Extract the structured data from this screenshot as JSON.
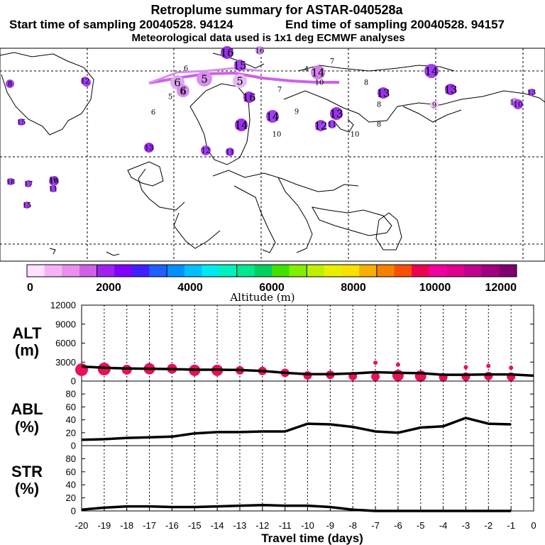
{
  "header": {
    "title": "Retroplume summary for ASTAR-040528a",
    "start": "Start time of sampling 20040528. 94124",
    "end": "End time of sampling 20040528. 94157",
    "met": "Meteorological data used is 1x1 deg ECMWF analyses"
  },
  "colorbar": {
    "label": "Altitude (m)",
    "ticks": [
      "0",
      "2000",
      "4000",
      "6000",
      "8000",
      "10000",
      "12000"
    ],
    "colors": [
      "#ffe0ff",
      "#f4b4f4",
      "#e890ec",
      "#d060e8",
      "#a020f0",
      "#8000ff",
      "#4020ff",
      "#2060ff",
      "#0090ff",
      "#00c0ff",
      "#00e8f0",
      "#00f0c0",
      "#00e890",
      "#00d060",
      "#40e000",
      "#80f000",
      "#c0f000",
      "#e8f000",
      "#f8e000",
      "#f8b000",
      "#f88000",
      "#f85000",
      "#f00050",
      "#f000a0",
      "#e00090",
      "#c00090",
      "#a00080",
      "#800070"
    ]
  },
  "map": {
    "markers": [
      {
        "label": "16",
        "c": "#9a30e8",
        "r": 9
      },
      {
        "label": "15",
        "c": "#a040f0",
        "r": 8
      },
      {
        "label": "16",
        "c": "#d090ec",
        "r": 6
      },
      {
        "label": "7",
        "c": "#e0b0f4",
        "r": 0
      },
      {
        "label": "14",
        "c": "#d080e8",
        "r": 10
      },
      {
        "label": "4",
        "c": "#e8b8f4",
        "r": 0
      },
      {
        "label": "6",
        "c": "#f4c8f8",
        "r": 0
      },
      {
        "label": "6",
        "c": "#e0a8f0",
        "r": 10
      },
      {
        "label": "5",
        "c": "#d890ec",
        "r": 11
      },
      {
        "label": "5",
        "c": "#e8b8f4",
        "r": 10
      },
      {
        "label": "7",
        "c": "#f8d8fc",
        "r": 0
      },
      {
        "label": "6",
        "c": "#d88af0",
        "r": 9
      },
      {
        "label": "10",
        "c": "#f0c0f8",
        "r": 0
      },
      {
        "label": "8",
        "c": "#ffffff",
        "r": 0
      },
      {
        "label": "16",
        "c": "#9a30e8",
        "r": 8
      },
      {
        "label": "8",
        "c": "#ffffff",
        "r": 0
      },
      {
        "label": "9",
        "c": "#f0c8f8",
        "r": 6
      },
      {
        "label": "13",
        "c": "#9a30e8",
        "r": 8
      },
      {
        "label": "14",
        "c": "#a040f0",
        "r": 10
      },
      {
        "label": "13",
        "c": "#9a30e8",
        "r": 8
      },
      {
        "label": "10",
        "c": "#d090ec",
        "r": 6
      },
      {
        "label": "14",
        "c": "#9a30e8",
        "r": 9
      },
      {
        "label": "10",
        "c": "#e8b8f4",
        "r": 0
      },
      {
        "label": "12",
        "c": "#a040f0",
        "r": 8
      },
      {
        "label": "11",
        "c": "#a040f0",
        "r": 6
      },
      {
        "label": "13",
        "c": "#9a30e8",
        "r": 9
      },
      {
        "label": "10",
        "c": "#ffffff",
        "r": 0
      },
      {
        "label": "8",
        "c": "#ffffff",
        "r": 0
      },
      {
        "label": "9",
        "c": "#d090ec",
        "r": 0
      },
      {
        "label": "14",
        "c": "#a040f0",
        "r": 9
      },
      {
        "label": "13",
        "c": "#9a30e8",
        "r": 7
      },
      {
        "label": "12",
        "c": "#a040f0",
        "r": 7
      },
      {
        "label": "11",
        "c": "#a040f0",
        "r": 6
      },
      {
        "label": "6",
        "c": "#ffffff",
        "r": 0
      },
      {
        "label": "5",
        "c": "#ffffff",
        "r": 0
      },
      {
        "label": "6",
        "c": "#ffffff",
        "r": 0
      },
      {
        "label": "15",
        "c": "#a040f0",
        "r": 5
      },
      {
        "label": "16",
        "c": "#a040f0",
        "r": 7
      },
      {
        "label": "8",
        "c": "#a040f0",
        "r": 6
      },
      {
        "label": "9",
        "c": "#a040f0",
        "r": 6
      },
      {
        "label": "18",
        "c": "#a040f0",
        "r": 5
      },
      {
        "label": "17",
        "c": "#a040f0",
        "r": 5
      },
      {
        "label": "16",
        "c": "#ffffff",
        "r": 0
      },
      {
        "label": "11",
        "c": "#a040f0",
        "r": 5
      },
      {
        "label": "15",
        "c": "#a040f0",
        "r": 5
      },
      {
        "label": "13",
        "c": "#a040f0",
        "r": 5
      },
      {
        "label": "10",
        "c": "#a040f0",
        "r": 7
      },
      {
        "label": "12",
        "c": "#a040f0",
        "r": 6
      }
    ]
  },
  "chart_data": [
    {
      "type": "line",
      "title": "ALT (m)",
      "ylabel": "ALT (m)",
      "xlabel": "Travel time (days)",
      "ylim": [
        0,
        12000
      ],
      "yticks": [
        "0",
        "3000",
        "6000",
        "9000",
        "12000"
      ],
      "x": [
        0,
        -1,
        -2,
        -3,
        -4,
        -5,
        -6,
        -7,
        -8,
        -9,
        -10,
        -11,
        -12,
        -13,
        -14,
        -15,
        -16,
        -17,
        -18,
        -19,
        -20
      ],
      "values": [
        850,
        1050,
        1050,
        1000,
        1000,
        1250,
        1300,
        1400,
        1200,
        1100,
        1100,
        1300,
        1600,
        1750,
        1800,
        1800,
        1900,
        1950,
        2000,
        2100,
        2300
      ],
      "scatter": [
        {
          "x": -20,
          "y": 1800,
          "s": 9
        },
        {
          "x": -19,
          "y": 1900,
          "s": 9
        },
        {
          "x": -18,
          "y": 1800,
          "s": 7
        },
        {
          "x": -17,
          "y": 1950,
          "s": 8
        },
        {
          "x": -16,
          "y": 1950,
          "s": 7
        },
        {
          "x": -15,
          "y": 1700,
          "s": 8
        },
        {
          "x": -14,
          "y": 1700,
          "s": 8
        },
        {
          "x": -13,
          "y": 1700,
          "s": 6
        },
        {
          "x": -12,
          "y": 1600,
          "s": 6
        },
        {
          "x": -11,
          "y": 1300,
          "s": 6
        },
        {
          "x": -10,
          "y": 900,
          "s": 6
        },
        {
          "x": -9,
          "y": 1000,
          "s": 6
        },
        {
          "x": -8,
          "y": 800,
          "s": 6
        },
        {
          "x": -7,
          "y": 2900,
          "s": 3
        },
        {
          "x": -7,
          "y": 700,
          "s": 6
        },
        {
          "x": -6,
          "y": 2600,
          "s": 3
        },
        {
          "x": -6,
          "y": 900,
          "s": 8
        },
        {
          "x": -5,
          "y": 800,
          "s": 8
        },
        {
          "x": -4,
          "y": 600,
          "s": 6
        },
        {
          "x": -3,
          "y": 2200,
          "s": 3
        },
        {
          "x": -3,
          "y": 700,
          "s": 6
        },
        {
          "x": -2,
          "y": 2400,
          "s": 3
        },
        {
          "x": -2,
          "y": 800,
          "s": 6
        },
        {
          "x": -1,
          "y": 2100,
          "s": 3
        },
        {
          "x": -1,
          "y": 700,
          "s": 6
        }
      ]
    },
    {
      "type": "line",
      "title": "ABL (%)",
      "ylabel": "ABL (%)",
      "ylim": [
        0,
        100
      ],
      "yticks": [
        "0",
        "20",
        "40",
        "60",
        "80"
      ],
      "x": [
        -1,
        -2,
        -3,
        -4,
        -5,
        -6,
        -7,
        -8,
        -9,
        -10,
        -11,
        -12,
        -13,
        -14,
        -15,
        -16,
        -17,
        -18,
        -19,
        -20
      ],
      "values": [
        33,
        34,
        43,
        30,
        28,
        20,
        22,
        29,
        33,
        34,
        22,
        22,
        21,
        21,
        19,
        14,
        13,
        12,
        10,
        9
      ]
    },
    {
      "type": "line",
      "title": "STR (%)",
      "ylabel": "STR (%)",
      "xlabel": "Travel time (days)",
      "ylim": [
        0,
        100
      ],
      "yticks": [
        "0",
        "20",
        "40",
        "60",
        "80"
      ],
      "x": [
        -1,
        -2,
        -3,
        -4,
        -5,
        -6,
        -7,
        -8,
        -9,
        -10,
        -11,
        -12,
        -13,
        -14,
        -15,
        -16,
        -17,
        -18,
        -19,
        -20
      ],
      "values": [
        0,
        0,
        0,
        0,
        0,
        0,
        0,
        2,
        6,
        8,
        8,
        9,
        8,
        7,
        6,
        6,
        7,
        7,
        5,
        2
      ],
      "xticks": [
        "-20",
        "-19",
        "-18",
        "-17",
        "-16",
        "-15",
        "-14",
        "-13",
        "-12",
        "-11",
        "-10",
        "-9",
        "-8",
        "-7",
        "-6",
        "-5",
        "-4",
        "-3",
        "-2",
        "-1",
        "0"
      ]
    }
  ]
}
